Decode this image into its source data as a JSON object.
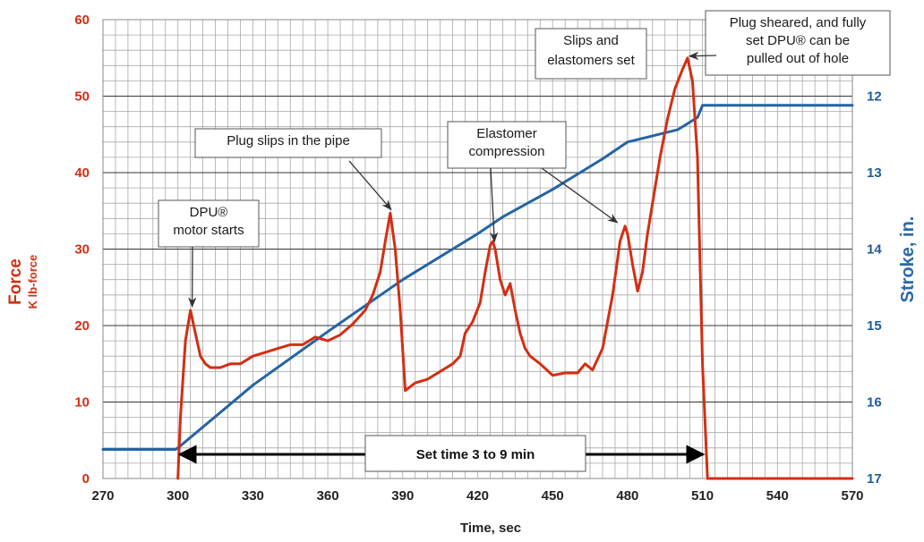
{
  "chart_data": {
    "type": "line",
    "xlabel": "Time, sec",
    "ylabel_left_main": "Force",
    "ylabel_left_sub": "K lb-force",
    "ylabel_right": "Stroke, in.",
    "colors": {
      "force": "#d42e12",
      "stroke": "#2464a4",
      "grid": "#a8a8a8",
      "right_axis_text": "#1f5c99"
    },
    "grid": true,
    "x_axis": {
      "min": 270,
      "max": 570,
      "ticks": [
        270,
        300,
        330,
        360,
        390,
        420,
        450,
        480,
        510,
        540,
        570
      ],
      "minor_step": 5
    },
    "y_left": {
      "min": 0,
      "max": 60,
      "ticks": [
        0,
        10,
        20,
        30,
        40,
        50,
        60
      ],
      "minor_step": 2
    },
    "y_right": {
      "min": 12,
      "max": 17,
      "reversed": true,
      "ticks": [
        12,
        13,
        14,
        15,
        16,
        17
      ]
    },
    "series": [
      {
        "name": "Force",
        "axis": "left",
        "x": [
          300,
          301,
          303,
          305,
          307,
          309,
          311,
          313,
          317,
          321,
          325,
          330,
          335,
          340,
          345,
          350,
          355,
          360,
          365,
          370,
          375,
          378,
          381,
          383,
          385,
          387,
          389,
          391,
          395,
          400,
          405,
          410,
          413,
          415,
          418,
          421,
          423,
          425,
          426,
          427,
          429,
          431,
          433,
          435,
          437,
          439,
          441,
          445,
          450,
          455,
          460,
          463,
          466,
          470,
          474,
          477,
          479,
          480,
          482,
          484,
          486,
          488,
          490,
          493,
          496,
          499,
          502,
          504,
          506,
          508,
          510,
          512,
          514,
          520,
          540,
          570
        ],
        "y": [
          0,
          8,
          18,
          22,
          19,
          16,
          15,
          14.5,
          14.5,
          15,
          15,
          16,
          16.5,
          17,
          17.5,
          17.5,
          18.5,
          18,
          18.8,
          20.2,
          22,
          24,
          27,
          31,
          34.7,
          30,
          22,
          11.5,
          12.5,
          13,
          14,
          15,
          16,
          19,
          20.5,
          23,
          27,
          30.5,
          31,
          30,
          26,
          24,
          25.5,
          22,
          19,
          17,
          16,
          15,
          13.5,
          13.8,
          13.8,
          15,
          14.2,
          17,
          24,
          31,
          33,
          32,
          28,
          24.5,
          27,
          32,
          36,
          42,
          47,
          51,
          53.5,
          55,
          52,
          42,
          15,
          0,
          0,
          0,
          0,
          0
        ]
      },
      {
        "name": "Stroke",
        "axis": "right",
        "x": [
          270,
          299,
          300,
          330,
          360,
          390,
          420,
          430,
          450,
          470,
          480,
          500,
          508,
          510,
          540,
          570
        ],
        "y": [
          16.62,
          16.62,
          16.6,
          15.78,
          15.08,
          14.4,
          13.8,
          13.58,
          13.22,
          12.82,
          12.6,
          12.44,
          12.28,
          12.12,
          12.12,
          12.12
        ]
      }
    ],
    "annotations": [
      {
        "lines": [
          "DPU®",
          "motor starts"
        ],
        "target": [
          305,
          22
        ]
      },
      {
        "lines": [
          "Plug slips in the pipe"
        ],
        "target": [
          385,
          34.7
        ]
      },
      {
        "lines": [
          "Elastomer",
          "compression"
        ],
        "target": [
          426,
          30.5
        ],
        "target2": [
          477,
          33
        ]
      },
      {
        "lines": [
          "Slips and",
          "elastomers set"
        ],
        "target": [
          504,
          55
        ]
      },
      {
        "lines": [
          "Plug sheared, and fully",
          "set DPU® can be",
          "pulled out of hole"
        ]
      },
      {
        "lines": [
          "Set time 3 to 9 min"
        ],
        "span": [
          300,
          511
        ]
      }
    ]
  }
}
